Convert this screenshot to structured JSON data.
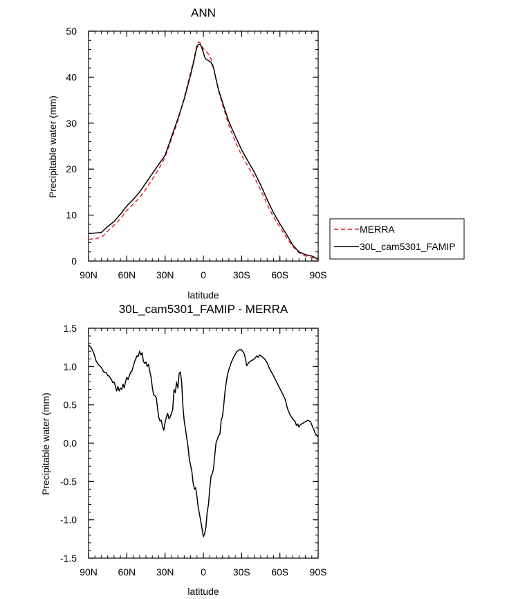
{
  "chart_data": [
    {
      "type": "line",
      "title": "ANN",
      "xlabel": "latitude",
      "ylabel": "Precipitable water (mm)",
      "xlim": [
        90,
        -90
      ],
      "ylim": [
        0,
        50
      ],
      "x_ticks": [
        {
          "value": 90,
          "label": "90N"
        },
        {
          "value": 60,
          "label": "60N"
        },
        {
          "value": 30,
          "label": "30N"
        },
        {
          "value": 0,
          "label": "0"
        },
        {
          "value": -30,
          "label": "30S"
        },
        {
          "value": -60,
          "label": "60S"
        },
        {
          "value": -90,
          "label": "90S"
        }
      ],
      "y_ticks": [
        {
          "value": 0,
          "label": "0"
        },
        {
          "value": 10,
          "label": "10"
        },
        {
          "value": 20,
          "label": "20"
        },
        {
          "value": 30,
          "label": "30"
        },
        {
          "value": 40,
          "label": "40"
        },
        {
          "value": 50,
          "label": "50"
        }
      ],
      "legend_position": "right",
      "series": [
        {
          "name": "MERRA",
          "color": "#e8202a",
          "dash": "dashed",
          "points": [
            [
              90,
              4.7
            ],
            [
              85,
              4.9
            ],
            [
              80,
              5.1
            ],
            [
              75,
              6.5
            ],
            [
              70,
              7.8
            ],
            [
              65,
              9.2
            ],
            [
              60,
              11
            ],
            [
              55,
              12.4
            ],
            [
              50,
              13.8
            ],
            [
              45,
              15.7
            ],
            [
              40,
              17.8
            ],
            [
              35,
              20
            ],
            [
              30,
              22.6
            ],
            [
              25,
              26.5
            ],
            [
              20,
              30.5
            ],
            [
              15,
              35.5
            ],
            [
              10,
              41
            ],
            [
              7,
              44.3
            ],
            [
              5,
              47.2
            ],
            [
              4,
              47.6
            ],
            [
              3,
              47.6
            ],
            [
              2,
              47.3
            ],
            [
              1,
              46.8
            ],
            [
              0,
              46.2
            ],
            [
              -2,
              45.6
            ],
            [
              -4,
              45
            ],
            [
              -6,
              44
            ],
            [
              -8,
              42
            ],
            [
              -10,
              39.5
            ],
            [
              -12,
              37
            ],
            [
              -15,
              34
            ],
            [
              -20,
              29.5
            ],
            [
              -25,
              26
            ],
            [
              -30,
              23
            ],
            [
              -35,
              20.6
            ],
            [
              -40,
              18.2
            ],
            [
              -45,
              15.4
            ],
            [
              -50,
              12.4
            ],
            [
              -55,
              9.6
            ],
            [
              -60,
              7.4
            ],
            [
              -65,
              5.2
            ],
            [
              -70,
              3.2
            ],
            [
              -75,
              1.8
            ],
            [
              -80,
              1.1
            ],
            [
              -85,
              0.8
            ],
            [
              -90,
              0.35
            ]
          ]
        },
        {
          "name": "30L_cam5301_FAMIP",
          "color": "#000000",
          "dash": "solid",
          "points": [
            [
              90,
              6
            ],
            [
              85,
              6.1
            ],
            [
              80,
              6.2
            ],
            [
              75,
              7.5
            ],
            [
              70,
              8.6
            ],
            [
              65,
              10.2
            ],
            [
              60,
              12
            ],
            [
              55,
              13.4
            ],
            [
              50,
              15
            ],
            [
              45,
              17
            ],
            [
              40,
              19
            ],
            [
              35,
              21
            ],
            [
              30,
              23
            ],
            [
              25,
              27
            ],
            [
              20,
              30.9
            ],
            [
              15,
              35.2
            ],
            [
              10,
              40.5
            ],
            [
              7,
              44
            ],
            [
              6,
              45.5
            ],
            [
              5,
              46.5
            ],
            [
              4,
              47.1
            ],
            [
              3,
              47.2
            ],
            [
              2,
              46.9
            ],
            [
              1,
              46.2
            ],
            [
              0,
              45.3
            ],
            [
              -1,
              44.4
            ],
            [
              -2,
              43.9
            ],
            [
              -4,
              43.6
            ],
            [
              -6,
              43.2
            ],
            [
              -8,
              42
            ],
            [
              -10,
              39.5
            ],
            [
              -12,
              37.2
            ],
            [
              -15,
              34.5
            ],
            [
              -20,
              30.3
            ],
            [
              -25,
              27.2
            ],
            [
              -30,
              24.2
            ],
            [
              -35,
              21.7
            ],
            [
              -40,
              19.3
            ],
            [
              -45,
              16.5
            ],
            [
              -50,
              13.4
            ],
            [
              -55,
              10.5
            ],
            [
              -60,
              8.1
            ],
            [
              -65,
              5.9
            ],
            [
              -70,
              3.5
            ],
            [
              -75,
              2
            ],
            [
              -80,
              1.4
            ],
            [
              -85,
              1.1
            ],
            [
              -90,
              0.4
            ]
          ]
        }
      ]
    },
    {
      "type": "line",
      "title": "30L_cam5301_FAMIP - MERRA",
      "xlabel": "latitude",
      "ylabel": "Precipitable water (mm)",
      "xlim": [
        90,
        -90
      ],
      "ylim": [
        -1.5,
        1.5
      ],
      "x_ticks": [
        {
          "value": 90,
          "label": "90N"
        },
        {
          "value": 60,
          "label": "60N"
        },
        {
          "value": 30,
          "label": "30N"
        },
        {
          "value": 0,
          "label": "0"
        },
        {
          "value": -30,
          "label": "30S"
        },
        {
          "value": -60,
          "label": "60S"
        },
        {
          "value": -90,
          "label": "90S"
        }
      ],
      "y_ticks": [
        {
          "value": -1.5,
          "label": "-1.5"
        },
        {
          "value": -1.0,
          "label": "-1.0"
        },
        {
          "value": -0.5,
          "label": "-0.5"
        },
        {
          "value": 0.0,
          "label": "0.0"
        },
        {
          "value": 0.5,
          "label": "0.5"
        },
        {
          "value": 1.0,
          "label": "1.0"
        },
        {
          "value": 1.5,
          "label": "1.5"
        }
      ],
      "series": [
        {
          "color": "#000000",
          "dash": "solid",
          "points": [
            [
              90,
              1.28
            ],
            [
              88,
              1.25
            ],
            [
              86,
              1.18
            ],
            [
              84,
              1.07
            ],
            [
              82,
              1.02
            ],
            [
              80,
              0.99
            ],
            [
              78,
              0.93
            ],
            [
              76,
              0.92
            ],
            [
              75,
              0.88
            ],
            [
              74,
              0.88
            ],
            [
              73,
              0.85
            ],
            [
              72,
              0.83
            ],
            [
              71,
              0.79
            ],
            [
              70,
              0.8
            ],
            [
              69,
              0.75
            ],
            [
              68,
              0.68
            ],
            [
              67,
              0.74
            ],
            [
              66,
              0.68
            ],
            [
              65,
              0.72
            ],
            [
              64,
              0.7
            ],
            [
              63,
              0.77
            ],
            [
              62,
              0.72
            ],
            [
              61,
              0.8
            ],
            [
              60,
              0.86
            ],
            [
              59,
              0.83
            ],
            [
              58,
              0.88
            ],
            [
              57,
              0.93
            ],
            [
              56,
              0.94
            ],
            [
              55,
              1.0
            ],
            [
              54,
              1.06
            ],
            [
              53,
              1.1
            ],
            [
              52,
              1.14
            ],
            [
              51,
              1.13
            ],
            [
              50,
              1.2
            ],
            [
              49,
              1.15
            ],
            [
              48,
              1.18
            ],
            [
              47,
              1.07
            ],
            [
              46,
              1.04
            ],
            [
              45,
              1.06
            ],
            [
              44,
              1.0
            ],
            [
              43,
              1.03
            ],
            [
              42,
              0.94
            ],
            [
              41,
              0.86
            ],
            [
              40,
              0.73
            ],
            [
              39,
              0.63
            ],
            [
              38,
              0.62
            ],
            [
              37,
              0.6
            ],
            [
              36,
              0.47
            ],
            [
              35,
              0.34
            ],
            [
              34,
              0.29
            ],
            [
              33,
              0.3
            ],
            [
              32,
              0.22
            ],
            [
              31,
              0.17
            ],
            [
              30,
              0.27
            ],
            [
              29,
              0.34
            ],
            [
              28,
              0.39
            ],
            [
              27,
              0.32
            ],
            [
              26,
              0.34
            ],
            [
              25,
              0.39
            ],
            [
              24,
              0.44
            ],
            [
              23,
              0.7
            ],
            [
              22,
              0.66
            ],
            [
              21,
              0.8
            ],
            [
              20,
              0.72
            ],
            [
              19,
              0.91
            ],
            [
              18,
              0.93
            ],
            [
              17,
              0.8
            ],
            [
              16,
              0.48
            ],
            [
              15,
              0.29
            ],
            [
              14,
              0.18
            ],
            [
              13,
              0.07
            ],
            [
              12,
              -0.05
            ],
            [
              11,
              -0.21
            ],
            [
              10,
              -0.29
            ],
            [
              9,
              -0.37
            ],
            [
              8,
              -0.52
            ],
            [
              7,
              -0.6
            ],
            [
              6,
              -0.58
            ],
            [
              5,
              -0.7
            ],
            [
              4,
              -0.84
            ],
            [
              3,
              -0.93
            ],
            [
              2,
              -1.02
            ],
            [
              1,
              -1.12
            ],
            [
              0,
              -1.22
            ],
            [
              -1,
              -1.18
            ],
            [
              -2,
              -1.1
            ],
            [
              -3,
              -0.9
            ],
            [
              -4,
              -0.8
            ],
            [
              -5,
              -0.6
            ],
            [
              -6,
              -0.43
            ],
            [
              -7,
              -0.4
            ],
            [
              -8,
              -0.33
            ],
            [
              -9,
              -0.15
            ],
            [
              -10,
              0.01
            ],
            [
              -11,
              0.05
            ],
            [
              -12,
              0.1
            ],
            [
              -13,
              0.12
            ],
            [
              -14,
              0.3
            ],
            [
              -15,
              0.35
            ],
            [
              -16,
              0.5
            ],
            [
              -17,
              0.68
            ],
            [
              -18,
              0.8
            ],
            [
              -19,
              0.9
            ],
            [
              -20,
              0.96
            ],
            [
              -22,
              1.06
            ],
            [
              -24,
              1.13
            ],
            [
              -26,
              1.19
            ],
            [
              -28,
              1.22
            ],
            [
              -30,
              1.22
            ],
            [
              -32,
              1.17
            ],
            [
              -33,
              1.1
            ],
            [
              -34,
              1.01
            ],
            [
              -36,
              1.06
            ],
            [
              -38,
              1.08
            ],
            [
              -40,
              1.1
            ],
            [
              -42,
              1.14
            ],
            [
              -43,
              1.12
            ],
            [
              -44,
              1.15
            ],
            [
              -46,
              1.13
            ],
            [
              -48,
              1.1
            ],
            [
              -50,
              1.05
            ],
            [
              -52,
              0.97
            ],
            [
              -55,
              0.88
            ],
            [
              -58,
              0.78
            ],
            [
              -61,
              0.68
            ],
            [
              -64,
              0.58
            ],
            [
              -66,
              0.45
            ],
            [
              -68,
              0.37
            ],
            [
              -70,
              0.32
            ],
            [
              -72,
              0.28
            ],
            [
              -73,
              0.23
            ],
            [
              -74,
              0.25
            ],
            [
              -75,
              0.21
            ],
            [
              -76,
              0.24
            ],
            [
              -78,
              0.26
            ],
            [
              -80,
              0.28
            ],
            [
              -82,
              0.3
            ],
            [
              -84,
              0.28
            ],
            [
              -86,
              0.2
            ],
            [
              -88,
              0.12
            ],
            [
              -90,
              0.08
            ]
          ]
        }
      ]
    }
  ]
}
